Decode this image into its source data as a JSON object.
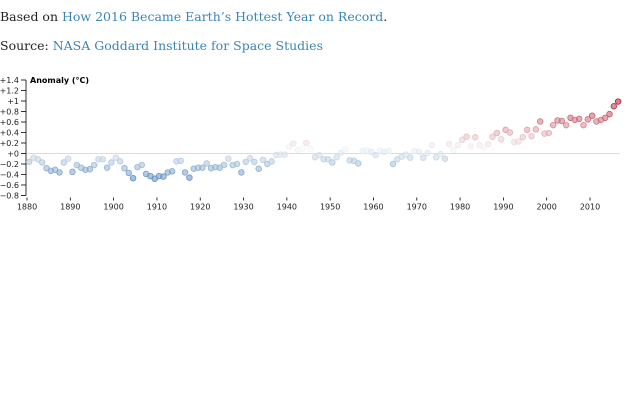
{
  "header": {
    "based_on_prefix": "Based on ",
    "based_on_link": "How 2016 Became Earth’s Hottest Year on Record",
    "based_on_suffix": ".",
    "source_prefix": "Source: ",
    "source_link": "NASA Goddard Institute for Space Studies"
  },
  "chart_data": {
    "type": "scatter",
    "title": "Anomaly (°C)",
    "xlabel": "",
    "ylabel": "Anomaly (°C)",
    "xlim": [
      1880,
      2016
    ],
    "ylim": [
      -0.8,
      1.4
    ],
    "x_ticks": [
      "1880",
      "1890",
      "1900",
      "1910",
      "1920",
      "1930",
      "1940",
      "1950",
      "1960",
      "1970",
      "1980",
      "1990",
      "2000",
      "2010"
    ],
    "y_ticks": [
      "+1.4",
      "+1.2",
      "+1",
      "+0.8",
      "+0.6",
      "+0.4",
      "+0.2",
      "+0",
      "−0.2",
      "−0.4",
      "−0.6",
      "−0.8"
    ],
    "reference_line": 0,
    "grid": false,
    "color_scale": {
      "low": "#2166ac",
      "mid": "#f7f7f7",
      "high": "#b2182b",
      "max": "#67001f"
    },
    "x_start": 1880,
    "values": [
      -0.16,
      -0.08,
      -0.11,
      -0.17,
      -0.28,
      -0.33,
      -0.31,
      -0.36,
      -0.17,
      -0.1,
      -0.35,
      -0.22,
      -0.27,
      -0.31,
      -0.3,
      -0.22,
      -0.11,
      -0.11,
      -0.27,
      -0.17,
      -0.08,
      -0.15,
      -0.28,
      -0.37,
      -0.47,
      -0.26,
      -0.22,
      -0.39,
      -0.43,
      -0.48,
      -0.43,
      -0.44,
      -0.36,
      -0.34,
      -0.15,
      -0.14,
      -0.36,
      -0.46,
      -0.29,
      -0.27,
      -0.27,
      -0.19,
      -0.28,
      -0.26,
      -0.27,
      -0.22,
      -0.1,
      -0.22,
      -0.2,
      -0.36,
      -0.16,
      -0.09,
      -0.16,
      -0.29,
      -0.12,
      -0.2,
      -0.15,
      -0.03,
      -0.02,
      -0.02,
      0.13,
      0.19,
      0.07,
      0.09,
      0.2,
      0.09,
      -0.07,
      -0.03,
      -0.11,
      -0.11,
      -0.17,
      -0.07,
      0.01,
      0.08,
      -0.13,
      -0.14,
      -0.19,
      0.05,
      0.06,
      0.03,
      -0.03,
      0.06,
      0.03,
      0.05,
      -0.2,
      -0.11,
      -0.06,
      -0.02,
      -0.08,
      0.05,
      0.03,
      -0.08,
      0.01,
      0.16,
      -0.07,
      -0.01,
      -0.1,
      0.18,
      0.07,
      0.16,
      0.26,
      0.32,
      0.14,
      0.31,
      0.16,
      0.12,
      0.18,
      0.32,
      0.39,
      0.27,
      0.45,
      0.4,
      0.22,
      0.23,
      0.31,
      0.45,
      0.33,
      0.46,
      0.61,
      0.38,
      0.39,
      0.54,
      0.63,
      0.62,
      0.54,
      0.68,
      0.64,
      0.66,
      0.54,
      0.65,
      0.72,
      0.61,
      0.64,
      0.68,
      0.75,
      0.9,
      0.99
    ]
  }
}
